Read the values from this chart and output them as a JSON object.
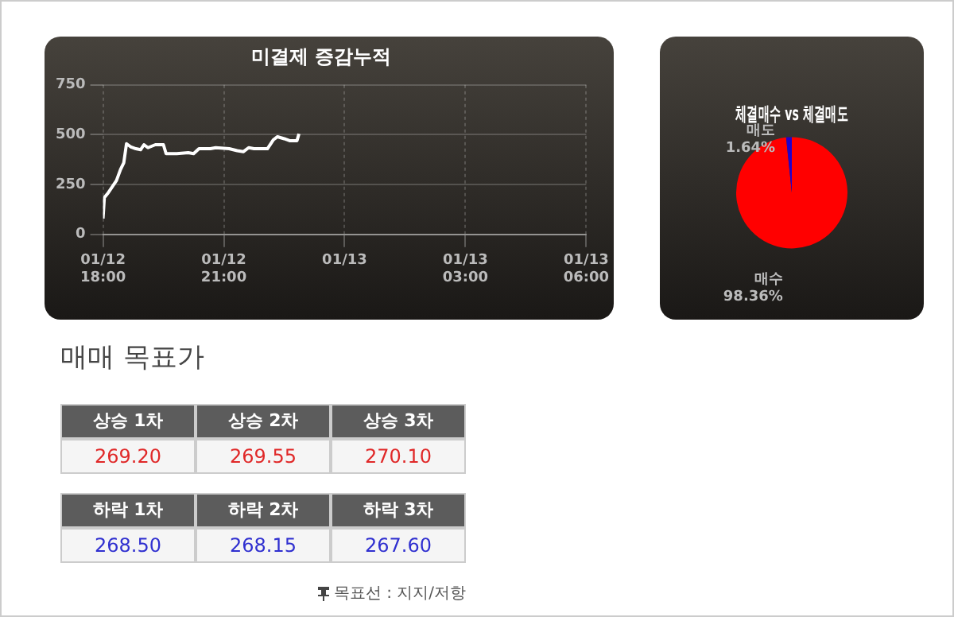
{
  "chart_data": [
    {
      "type": "line",
      "title": "미결제 증감누적",
      "x": [
        "--01-12T18:00",
        "--01-12T18:02",
        "--01-12T18:08",
        "--01-12T18:15",
        "--01-12T18:20",
        "--01-12T18:26",
        "--01-12T18:31",
        "--01-12T18:35",
        "--01-12T18:41",
        "--01-12T18:49",
        "--01-12T18:56",
        "--01-12T19:01",
        "--01-12T19:07",
        "--01-12T19:18",
        "--01-12T19:30",
        "--01-12T19:34",
        "--01-12T19:50",
        "--01-12T20:07",
        "--01-12T20:15",
        "--01-12T20:23",
        "--01-12T20:40",
        "--01-12T20:48",
        "--01-12T21:08",
        "--01-12T21:20",
        "--01-12T21:29",
        "--01-12T21:37",
        "--01-12T21:45",
        "--01-12T22:05",
        "--01-12T22:14",
        "--01-12T22:20",
        "--01-12T22:30",
        "--01-12T22:38",
        "--01-12T22:49",
        "--01-12T22:52"
      ],
      "series": [
        {
          "color": "#ffffff",
          "values": [
            80,
            185,
            210,
            245,
            270,
            325,
            360,
            455,
            440,
            430,
            425,
            450,
            435,
            450,
            450,
            405,
            405,
            410,
            405,
            430,
            430,
            435,
            430,
            420,
            415,
            435,
            430,
            430,
            475,
            490,
            480,
            470,
            470,
            505
          ]
        }
      ],
      "xlim": [
        "--01-12T18:00",
        "--01-13T06:00"
      ],
      "xticks": [
        {
          "value": "--01-12T18:00",
          "label": "01/12 18:00"
        },
        {
          "value": "--01-12T21:00",
          "label": "01/12 21:00"
        },
        {
          "value": "--01-13T00:00",
          "label": "01/13"
        },
        {
          "value": "--01-13T03:00",
          "label": "01/13 03:00"
        },
        {
          "value": "--01-13T06:00",
          "label": "01/13 06:00"
        }
      ],
      "ylim": [
        0,
        750
      ],
      "yticks": [
        0,
        250,
        500,
        750
      ],
      "grid": true,
      "legend": false
    },
    {
      "type": "pie",
      "title": "체결매수 vs 체결매도",
      "categories": [
        "매수",
        "매도"
      ],
      "values": [
        98.36,
        1.64
      ],
      "colors": [
        "#ff0000",
        "#2200cc"
      ],
      "value_labels": [
        "98.36%",
        "1.64%"
      ],
      "legend": false
    },
    {
      "type": "other",
      "title": "매매 목표가",
      "categories": [
        "상승 1차",
        "상승 2차",
        "상승 3차",
        "하락 1차",
        "하락 2차",
        "하락 3차"
      ],
      "value_labels": [
        "269.20",
        "269.55",
        "270.10",
        "268.50",
        "268.15",
        "267.60"
      ],
      "annotations": [
        "목표선 : 지지/저항"
      ]
    }
  ]
}
